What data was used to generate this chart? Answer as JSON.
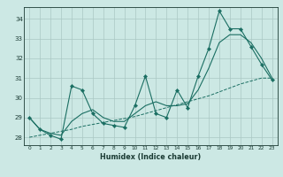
{
  "xlabel": "Humidex (Indice chaleur)",
  "background_color": "#cce8e4",
  "grid_color": "#aac8c4",
  "line_color": "#1a6e62",
  "x_values": [
    0,
    1,
    2,
    3,
    4,
    5,
    6,
    7,
    8,
    9,
    10,
    11,
    12,
    13,
    14,
    15,
    16,
    17,
    18,
    19,
    20,
    21,
    22,
    23
  ],
  "y_main": [
    29.0,
    28.4,
    28.1,
    27.9,
    30.6,
    30.4,
    29.2,
    28.7,
    28.6,
    28.5,
    29.6,
    31.1,
    29.2,
    29.0,
    30.4,
    29.5,
    31.1,
    32.5,
    34.4,
    33.5,
    33.5,
    32.6,
    31.7,
    30.9
  ],
  "y_smooth": [
    29.0,
    28.4,
    28.2,
    28.1,
    28.8,
    29.2,
    29.4,
    29.0,
    28.8,
    28.8,
    29.2,
    29.6,
    29.8,
    29.6,
    29.6,
    29.7,
    30.4,
    31.5,
    32.8,
    33.2,
    33.2,
    32.8,
    32.0,
    31.0
  ],
  "y_trend": [
    28.0,
    28.1,
    28.2,
    28.3,
    28.4,
    28.55,
    28.65,
    28.75,
    28.85,
    28.95,
    29.05,
    29.2,
    29.35,
    29.5,
    29.65,
    29.8,
    29.95,
    30.1,
    30.3,
    30.5,
    30.7,
    30.85,
    31.0,
    31.0
  ],
  "ylim": [
    27.6,
    34.6
  ],
  "yticks": [
    28,
    29,
    30,
    31,
    32,
    33,
    34
  ],
  "xlim": [
    -0.5,
    23.5
  ],
  "xticks": [
    0,
    1,
    2,
    3,
    4,
    5,
    6,
    7,
    8,
    9,
    10,
    11,
    12,
    13,
    14,
    15,
    16,
    17,
    18,
    19,
    20,
    21,
    22,
    23
  ]
}
